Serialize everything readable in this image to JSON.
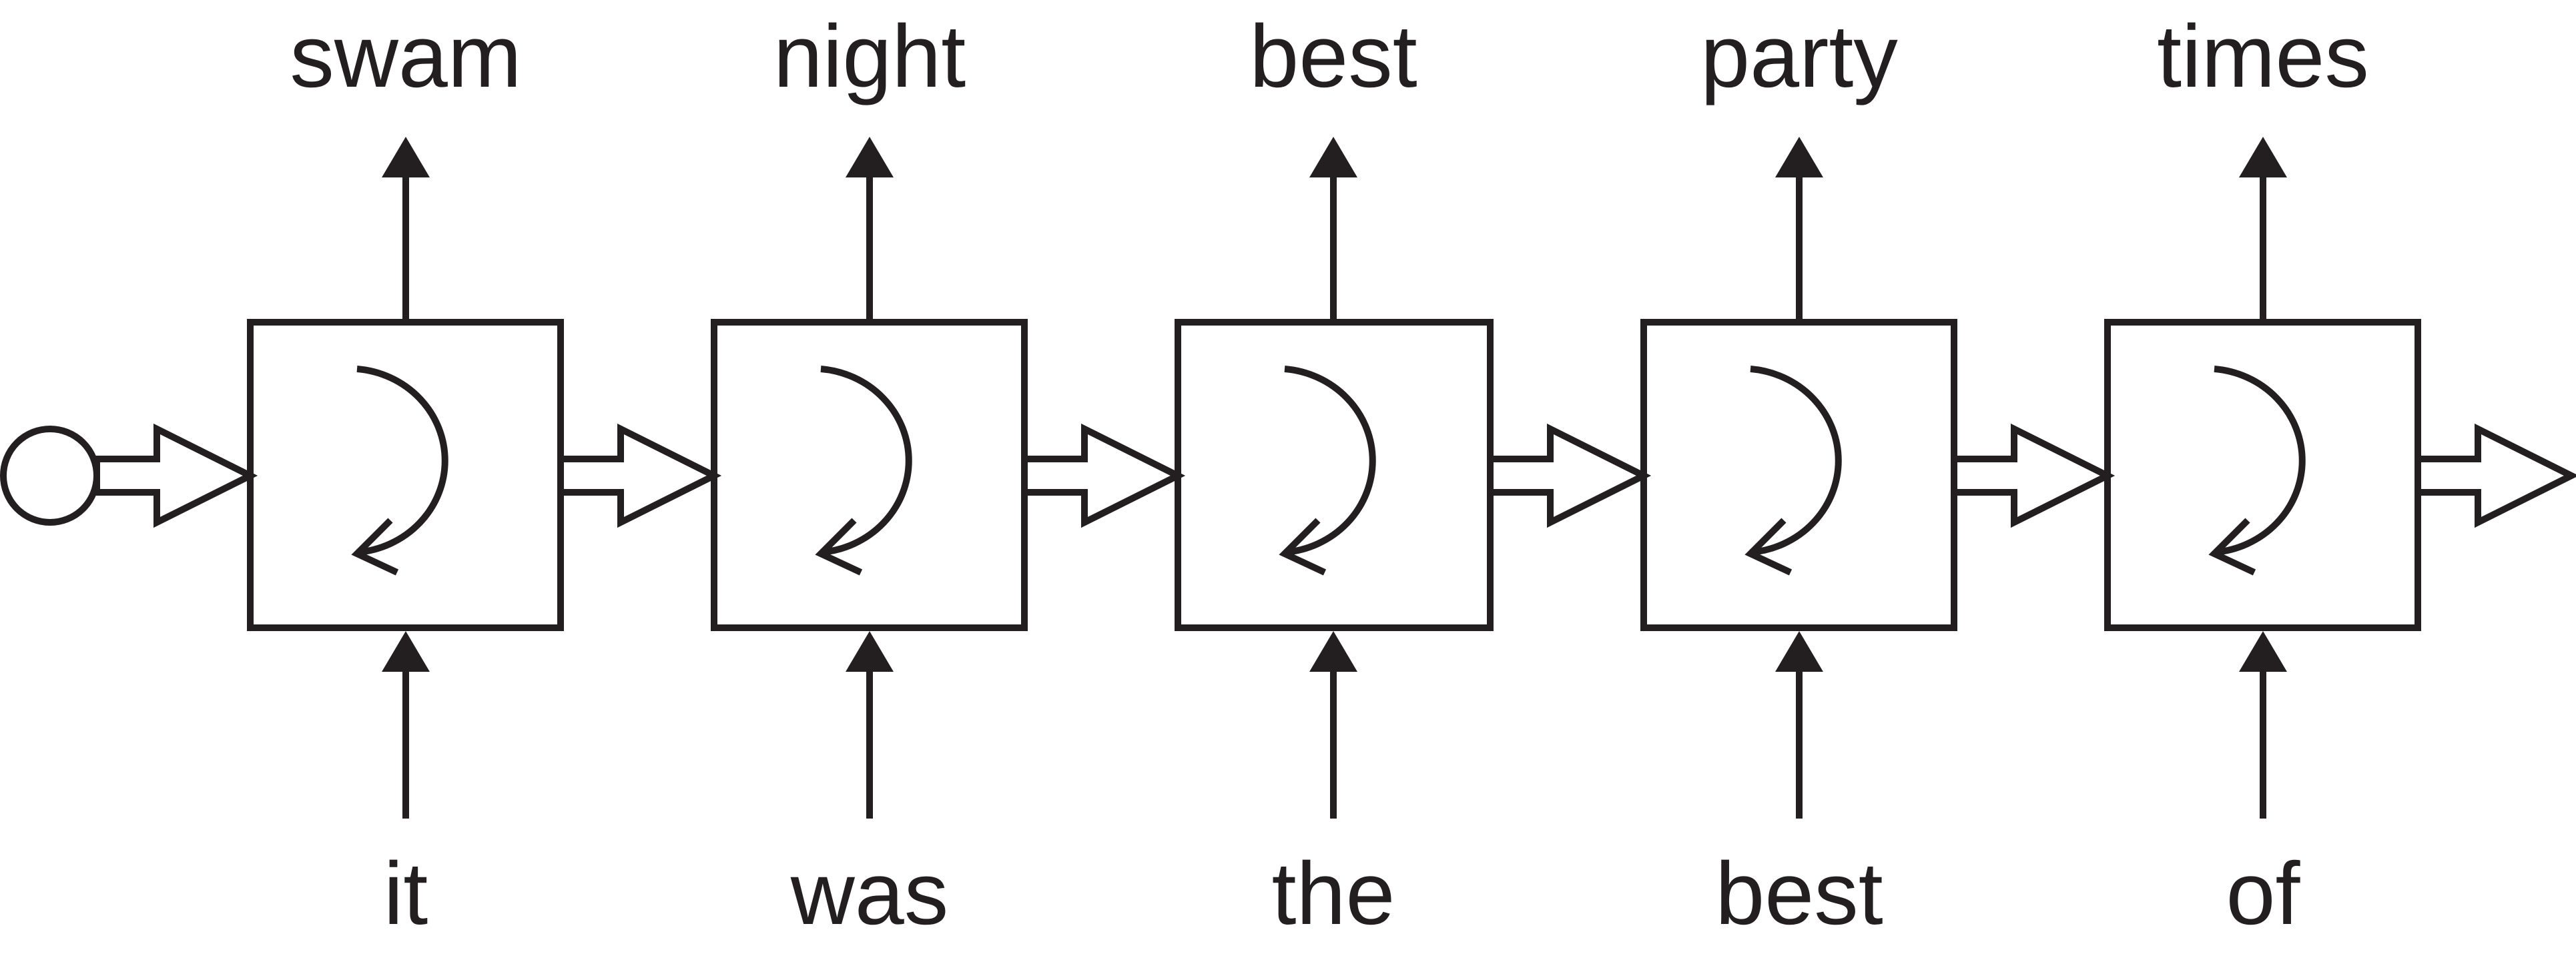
{
  "diagram": {
    "line_color": "#231f20",
    "background": "#ffffff",
    "cells": [
      {
        "input": "it",
        "output": "swam"
      },
      {
        "input": "was",
        "output": "night"
      },
      {
        "input": "the",
        "output": "best"
      },
      {
        "input": "best",
        "output": "party"
      },
      {
        "input": "of",
        "output": "times"
      }
    ]
  }
}
